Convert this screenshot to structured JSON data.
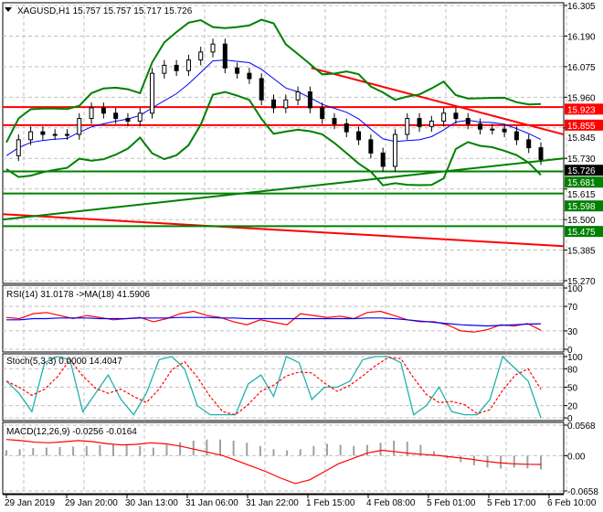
{
  "window": {
    "symbol_line": "XAGUSD,H1  15.757 15.757 15.717 15.726"
  },
  "colors": {
    "red": "#ff0000",
    "green": "#008000",
    "blue": "#0000ff",
    "cyan": "#20b2aa",
    "grid": "#c0c0c0",
    "current": "#000000"
  },
  "chart_data": [
    {
      "type": "line",
      "title": "XAGUSD,H1  15.757 15.757 15.717 15.726",
      "ylim": [
        15.27,
        16.305
      ],
      "y_ticks": [
        "16.305",
        "16.190",
        "16.075",
        "15.960",
        "15.845",
        "15.730",
        "15.615",
        "15.500",
        "15.385",
        "15.270"
      ],
      "x_ticks": [
        "29 Jan 2019",
        "29 Jan 20:00",
        "30 Jan 13:00",
        "31 Jan 06:00",
        "31 Jan 22:00",
        "1 Feb 15:00",
        "4 Feb 08:00",
        "5 Feb 01:00",
        "5 Feb 17:00",
        "6 Feb 10:00"
      ],
      "close": [
        15.74,
        15.8,
        15.83,
        15.82,
        15.82,
        15.82,
        15.88,
        15.92,
        15.9,
        15.88,
        15.87,
        15.9,
        16.05,
        16.08,
        16.06,
        16.1,
        16.13,
        16.16,
        16.07,
        16.05,
        16.03,
        15.95,
        15.92,
        15.95,
        15.98,
        15.92,
        15.88,
        15.86,
        15.83,
        15.8,
        15.75,
        15.7,
        15.82,
        15.88,
        15.85,
        15.87,
        15.9,
        15.88,
        15.86,
        15.84,
        15.84,
        15.83,
        15.8,
        15.77,
        15.726
      ],
      "levels": [
        {
          "label": "15.923",
          "value": 15.923,
          "color": "red"
        },
        {
          "label": "15.855",
          "value": 15.855,
          "color": "red"
        },
        {
          "label": "15.681",
          "value": 15.681,
          "color": "green"
        },
        {
          "label": "15.598",
          "value": 15.598,
          "color": "green"
        },
        {
          "label": "15.475",
          "value": 15.475,
          "color": "green"
        }
      ],
      "current_price": "15.726",
      "trendlines": [
        {
          "color": "red",
          "from": [
            0.55,
            16.07
          ],
          "to": [
            1.0,
            15.82
          ]
        },
        {
          "color": "red",
          "from": [
            0.0,
            15.52
          ],
          "to": [
            1.0,
            15.4
          ]
        },
        {
          "color": "green",
          "from": [
            0.0,
            15.5
          ],
          "to": [
            1.0,
            15.73
          ]
        }
      ]
    },
    {
      "type": "line",
      "title": "RSI(14) 31.0178  ->MA(18) 41.5906",
      "ylim": [
        0,
        100
      ],
      "y_ticks": [
        "100",
        "70",
        "30",
        "0"
      ],
      "series": [
        {
          "values": [
            52,
            50,
            58,
            60,
            55,
            50,
            55,
            52,
            48,
            50,
            52,
            45,
            50,
            58,
            62,
            55,
            52,
            45,
            40,
            48,
            44,
            40,
            58,
            55,
            52,
            54,
            50,
            60,
            62,
            55,
            48,
            45,
            45,
            40,
            30,
            28,
            32,
            40,
            38,
            42,
            31
          ]
        },
        {
          "values": [
            48,
            48,
            50,
            50,
            51,
            51,
            51,
            50,
            50,
            50,
            51,
            51,
            51,
            52,
            52,
            52,
            51,
            51,
            50,
            50,
            50,
            50,
            50,
            50,
            50,
            50,
            50,
            51,
            51,
            50,
            48,
            46,
            44,
            42,
            40,
            39,
            38,
            39,
            40,
            41,
            41.59
          ]
        }
      ]
    },
    {
      "type": "line",
      "title": "Stoch(5,3,3) 0.0000 14.4047",
      "ylim": [
        0,
        100
      ],
      "y_ticks": [
        "100",
        "80",
        "50",
        "20",
        "0"
      ],
      "series": [
        {
          "values": [
            60,
            40,
            10,
            90,
            100,
            95,
            10,
            40,
            70,
            30,
            5,
            40,
            95,
            100,
            80,
            20,
            5,
            5,
            5,
            55,
            70,
            35,
            100,
            90,
            30,
            50,
            50,
            60,
            95,
            100,
            100,
            90,
            5,
            20,
            50,
            10,
            5,
            5,
            30,
            100,
            80,
            60,
            0
          ]
        }
      ]
    },
    {
      "type": "bar",
      "title": "MACD(12,26,9) -0.0256 -0.0164",
      "ylim": [
        -0.0658,
        0.0568
      ],
      "y_ticks": [
        "0.0568",
        "0.00",
        "-0.0658"
      ],
      "histogram": [
        0.01,
        0.012,
        0.014,
        0.015,
        0.016,
        0.017,
        0.018,
        0.02,
        0.022,
        0.02,
        0.018,
        0.015,
        0.02,
        0.025,
        0.028,
        0.03,
        0.03,
        0.028,
        0.024,
        0.018,
        0.012,
        0.01,
        0.012,
        0.018,
        0.022,
        0.02,
        0.018,
        0.02,
        0.024,
        0.028,
        0.026,
        0.02,
        0.008,
        -0.005,
        -0.012,
        -0.018,
        -0.022,
        -0.024,
        -0.022,
        -0.024,
        -0.0256
      ],
      "signal": [
        0.03,
        0.028,
        0.025,
        0.024,
        0.026,
        0.028,
        0.026,
        0.022,
        0.02,
        0.021,
        0.024,
        0.022,
        0.018,
        0.012,
        0.006,
        0.0,
        -0.01,
        -0.02,
        -0.03,
        -0.042,
        -0.052,
        -0.045,
        -0.03,
        -0.015,
        -0.005,
        0.005,
        0.01,
        0.007,
        0.004,
        0.002,
        0.0,
        -0.003,
        -0.006,
        -0.01,
        -0.013,
        -0.015,
        -0.016,
        -0.0164
      ]
    }
  ]
}
